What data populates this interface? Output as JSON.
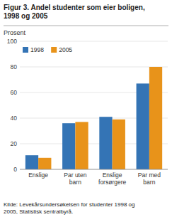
{
  "chart_data": {
    "type": "bar",
    "title": "Figur 3. Andel studenter som eier boligen,\n1998 og 2005",
    "ylabel": "Prosent",
    "source": "Kilde: Levekårsundersøkelsen for studenter 1998 og\n2005, Statistisk sentralbyrå.",
    "categories": [
      "Enslige",
      "Par uten\nbarn",
      "Enslige\nforsørgere",
      "Par med\nbarn"
    ],
    "series": [
      {
        "name": "1998",
        "color": "#3474b5",
        "values": [
          11,
          36,
          41,
          67
        ]
      },
      {
        "name": "2005",
        "color": "#e8931a",
        "values": [
          9,
          37,
          39,
          80
        ]
      }
    ],
    "ylim": [
      0,
      100
    ],
    "yticks": [
      0,
      20,
      40,
      60,
      80,
      100
    ],
    "grid": true,
    "legend": "upper left"
  }
}
